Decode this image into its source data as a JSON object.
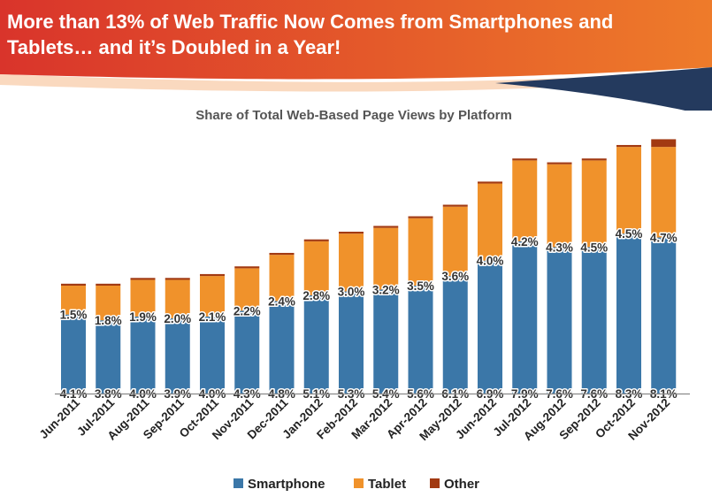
{
  "headline": "More than 13% of Web Traffic Now Comes from Smartphones and Tablets… and it’s Doubled in a Year!",
  "colors": {
    "smartphone": "#3B77A8",
    "tablet": "#F0922B",
    "other": "#A23A12",
    "banner_red": "#D9342B",
    "banner_orange": "#EE7B2A",
    "banner_navy": "#243A5E"
  },
  "chart_data": {
    "type": "bar",
    "stacked": true,
    "title": "Share of Total Web-Based Page Views by Platform",
    "categories": [
      "Jun-2011",
      "Jul-2011",
      "Aug-2011",
      "Sep-2011",
      "Oct-2011",
      "Nov-2011",
      "Dec-2011",
      "Jan-2012",
      "Feb-2012",
      "Mar-2012",
      "Apr-2012",
      "May-2012",
      "Jun-2012",
      "Jul-2012",
      "Aug-2012",
      "Sep-2012",
      "Oct-2012",
      "Nov-2012"
    ],
    "series": [
      {
        "name": "Smartphone",
        "color": "#3B77A8",
        "values": [
          4.1,
          3.8,
          4.0,
          3.9,
          4.0,
          4.3,
          4.8,
          5.1,
          5.3,
          5.4,
          5.6,
          6.1,
          6.9,
          7.9,
          7.6,
          7.6,
          8.3,
          8.1
        ],
        "labels": [
          "4.1%",
          "3.8%",
          "4.0%",
          "3.9%",
          "4.0%",
          "4.3%",
          "4.8%",
          "5.1%",
          "5.3%",
          "5.4%",
          "5.6%",
          "6.1%",
          "6.9%",
          "7.9%",
          "7.6%",
          "7.6%",
          "8.3%",
          "8.1%"
        ]
      },
      {
        "name": "Tablet",
        "color": "#F0922B",
        "values": [
          1.5,
          1.8,
          1.9,
          2.0,
          2.1,
          2.2,
          2.4,
          2.8,
          3.0,
          3.2,
          3.5,
          3.6,
          4.0,
          4.2,
          4.3,
          4.5,
          4.5,
          4.7
        ],
        "labels": [
          "1.5%",
          "1.8%",
          "1.9%",
          "2.0%",
          "2.1%",
          "2.2%",
          "2.4%",
          "2.8%",
          "3.0%",
          "3.2%",
          "3.5%",
          "3.6%",
          "4.0%",
          "4.2%",
          "4.3%",
          "4.5%",
          "4.5%",
          "4.7%"
        ]
      },
      {
        "name": "Other",
        "color": "#A23A12",
        "values": [
          0.1,
          0.1,
          0.1,
          0.1,
          0.1,
          0.1,
          0.1,
          0.1,
          0.1,
          0.1,
          0.1,
          0.1,
          0.1,
          0.1,
          0.1,
          0.1,
          0.1,
          0.4
        ]
      }
    ],
    "ylim": [
      0,
      14
    ],
    "grid": false,
    "legend_position": "bottom",
    "xlabel": "",
    "ylabel": ""
  }
}
